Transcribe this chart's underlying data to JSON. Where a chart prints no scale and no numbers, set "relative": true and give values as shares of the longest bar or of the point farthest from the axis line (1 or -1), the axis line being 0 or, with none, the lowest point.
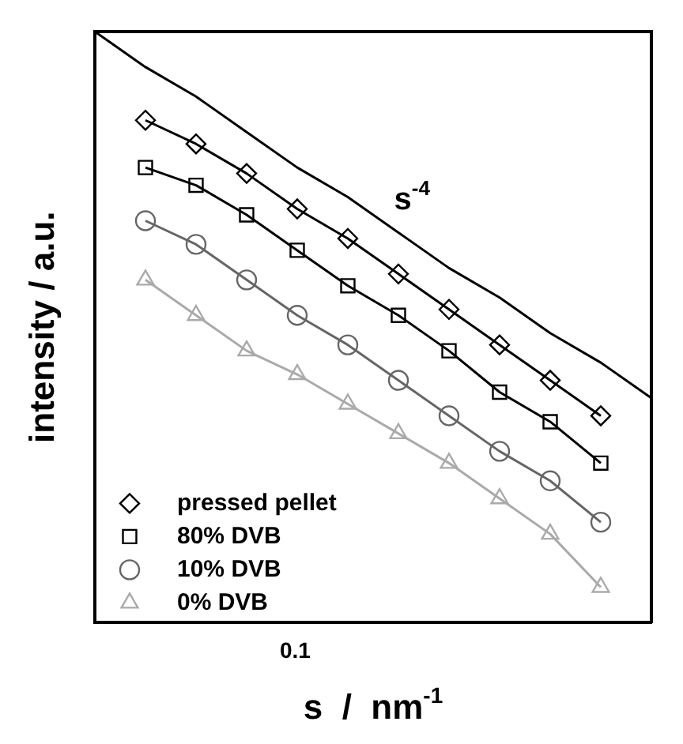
{
  "chart_data": {
    "type": "line",
    "xlabel": "s  /  nm$^{-1}$",
    "ylabel": "intensity / a.u.",
    "relative": true,
    "legend": "bottom left",
    "categories": [
      null,
      null,
      null,
      null,
      null,
      null,
      null,
      null,
      null,
      null,
      null,
      null
    ],
    "annotations": [
      "s$^{-4}$",
      "0.1"
    ],
    "series": [
      {
        "color": "#000000",
        "marker": "none",
        "values": [
          1,
          0.94,
          0.89,
          0.83,
          0.77,
          0.72,
          0.66,
          0.6,
          0.55,
          0.49,
          0.44,
          0.38
        ]
      },
      {
        "name": "pressed pellet",
        "color": "#000000",
        "marker": "diamond",
        "values": [
          null,
          0.85,
          0.81,
          0.76,
          0.7,
          0.65,
          0.59,
          0.53,
          0.47,
          0.41,
          0.35,
          null
        ]
      },
      {
        "name": "80% DVB",
        "color": "#000000",
        "marker": "square",
        "values": [
          null,
          0.77,
          0.74,
          0.69,
          0.63,
          0.57,
          0.52,
          0.46,
          0.39,
          0.34,
          0.27,
          null
        ]
      },
      {
        "name": "10% DVB",
        "color": "#666666",
        "marker": "circle",
        "values": [
          null,
          0.68,
          0.64,
          0.58,
          0.52,
          0.47,
          0.41,
          0.35,
          0.29,
          0.24,
          0.17,
          null
        ]
      },
      {
        "name": "0% DVB",
        "color": "#aaaaaa",
        "marker": "triangle",
        "values": [
          null,
          0.58,
          0.52,
          0.46,
          0.42,
          0.37,
          0.32,
          0.27,
          0.21,
          0.15,
          0.06,
          null
        ]
      }
    ]
  }
}
